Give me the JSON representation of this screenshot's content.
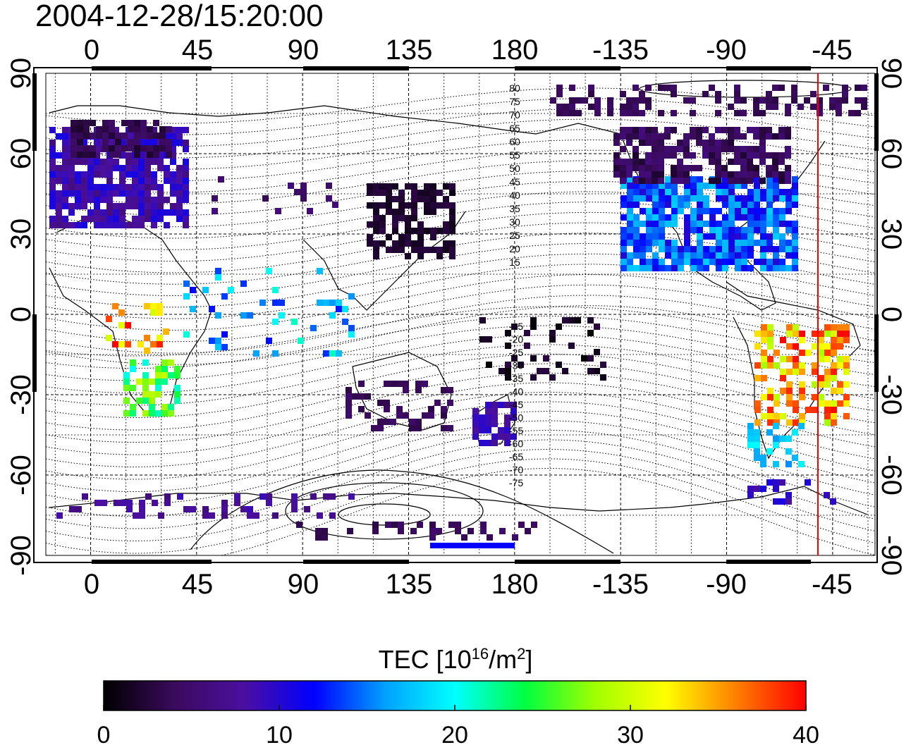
{
  "title": "2004-12-28/15:20:00",
  "map": {
    "lon_ticks_top": [
      "0",
      "45",
      "90",
      "135",
      "180",
      "-135",
      "-90",
      "-45"
    ],
    "lon_ticks_bottom": [
      "0",
      "45",
      "90",
      "135",
      "180",
      "-135",
      "-90",
      "-45"
    ],
    "lat_ticks_left": [
      "90",
      "60",
      "30",
      "0",
      "-30",
      "-60",
      "-90"
    ],
    "lat_ticks_right": [
      "90",
      "60",
      "30",
      "0",
      "-30",
      "-60",
      "-90"
    ],
    "contour_labels_north": [
      "80",
      "75",
      "70",
      "65",
      "60",
      "55",
      "50",
      "45",
      "40",
      "35",
      "30",
      "25",
      "20",
      "15"
    ],
    "contour_labels_south": [
      "-15",
      "-20",
      "-25",
      "-30",
      "-35",
      "-40",
      "-45",
      "-50",
      "-55",
      "-60",
      "-65",
      "-70",
      "-75"
    ],
    "marker_color": "#ff0000",
    "marker_lon": -50
  },
  "colorbar": {
    "label_main": "TEC  [10",
    "label_exp": "16",
    "label_unit": "/m",
    "label_exp2": "2",
    "label_end": "]",
    "ticks": [
      "0",
      "10",
      "20",
      "30",
      "40"
    ],
    "range": [
      0,
      40
    ],
    "stops": [
      "#000000",
      "#3a0a5c",
      "#4b0fa0",
      "#0000ff",
      "#00a0ff",
      "#00ffff",
      "#00ff40",
      "#a0ff00",
      "#ffff00",
      "#ff8000",
      "#ff0000"
    ]
  }
}
